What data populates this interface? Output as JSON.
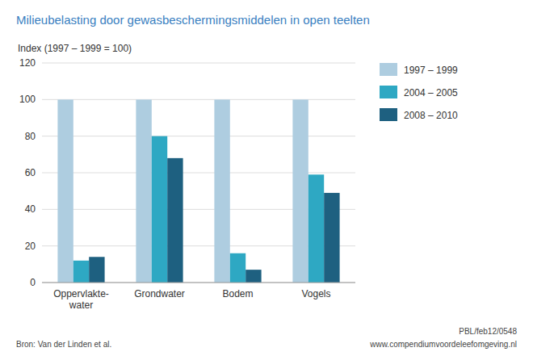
{
  "chart_data": {
    "type": "bar",
    "title": "Milieubelasting door gewasbeschermingsmiddelen in open teelten",
    "ylabel": "Index (1997 – 1999 = 100)",
    "categories": [
      "Oppervlakte-\nwater",
      "Grondwater",
      "Bodem",
      "Vogels"
    ],
    "series": [
      {
        "name": "1997 – 1999",
        "color": "#aecde0",
        "values": [
          100,
          100,
          100,
          100
        ]
      },
      {
        "name": "2004 – 2005",
        "color": "#2ea8c3",
        "values": [
          12,
          80,
          16,
          59
        ]
      },
      {
        "name": "2008 – 2010",
        "color": "#1e6080",
        "values": [
          14,
          68,
          7,
          49
        ]
      }
    ],
    "ylim": [
      0,
      120
    ],
    "yticks": [
      0,
      20,
      40,
      60,
      80,
      100,
      120
    ],
    "grid": true,
    "legend": "right",
    "annotations": [
      "Bron: Van der Linden et al.",
      "www.compendiumvoordeleefomgeving.nl",
      "PBL/feb12/0548"
    ]
  }
}
